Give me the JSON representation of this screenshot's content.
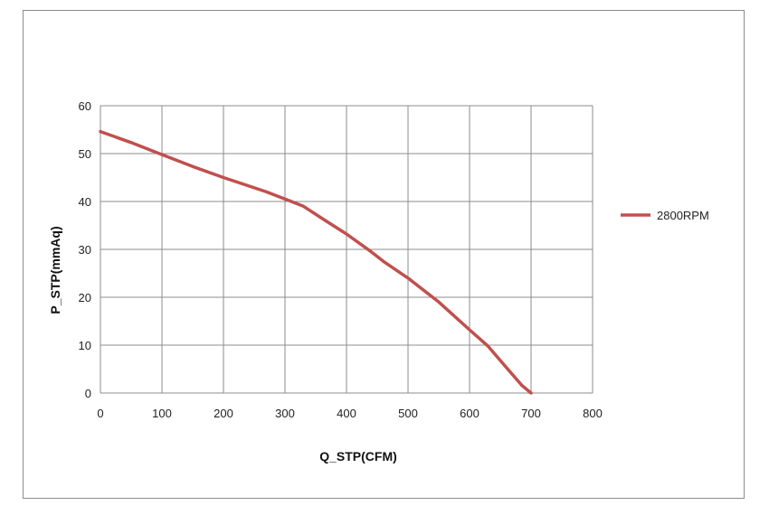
{
  "chart_data": {
    "type": "line",
    "title": "",
    "xlabel": "Q_STP(CFM)",
    "ylabel": "P_STP(mmAq)",
    "xlim": [
      0,
      800
    ],
    "ylim": [
      0,
      60
    ],
    "x_ticks": [
      0,
      100,
      200,
      300,
      400,
      500,
      600,
      700,
      800
    ],
    "y_ticks": [
      0,
      10,
      20,
      30,
      40,
      50,
      60
    ],
    "grid": true,
    "legend_position": "right",
    "series": [
      {
        "name": "2800RPM",
        "color": "#c0504d",
        "x": [
          0,
          50,
          100,
          150,
          200,
          270,
          300,
          330,
          360,
          400,
          440,
          460,
          500,
          520,
          550,
          600,
          630,
          660,
          685,
          700
        ],
        "y": [
          54.6,
          52.3,
          49.8,
          47.3,
          45.0,
          42.0,
          40.5,
          39.0,
          36.5,
          33.2,
          29.5,
          27.5,
          24.0,
          22.0,
          19.0,
          13.2,
          9.8,
          5.3,
          1.6,
          0.0
        ]
      }
    ]
  }
}
